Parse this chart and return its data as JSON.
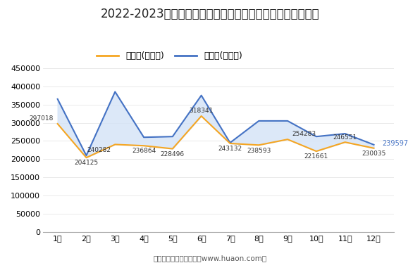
{
  "title": "2022-2023年大连市商品收发货人所在地进、出口额月度统计",
  "months": [
    "1月",
    "2月",
    "3月",
    "4月",
    "5月",
    "6月",
    "7月",
    "8月",
    "9月",
    "10月",
    "11月",
    "12月"
  ],
  "export_values": [
    297018,
    204125,
    240282,
    236864,
    228496,
    318341,
    243132,
    238593,
    254283,
    221661,
    246551,
    230035
  ],
  "import_values": [
    365000,
    210000,
    385000,
    260000,
    262000,
    375000,
    245000,
    305000,
    305000,
    262000,
    270000,
    239597
  ],
  "export_label": "出口额(万美元)",
  "import_label": "进口额(万美元)",
  "export_color": "#F5A623",
  "import_color": "#4472C4",
  "fill_color": "#D6E4F7",
  "ylim": [
    0,
    450000
  ],
  "yticks": [
    0,
    50000,
    100000,
    150000,
    200000,
    250000,
    300000,
    350000,
    400000,
    450000
  ],
  "footer": "制图：华经产业研究院（www.huaon.com）",
  "bg_color": "#FFFFFF",
  "last_import_label": "239597",
  "last_import_color": "#4472C4",
  "title_fontsize": 12,
  "legend_fontsize": 9,
  "tick_fontsize": 8,
  "annot_fontsize": 6.5
}
